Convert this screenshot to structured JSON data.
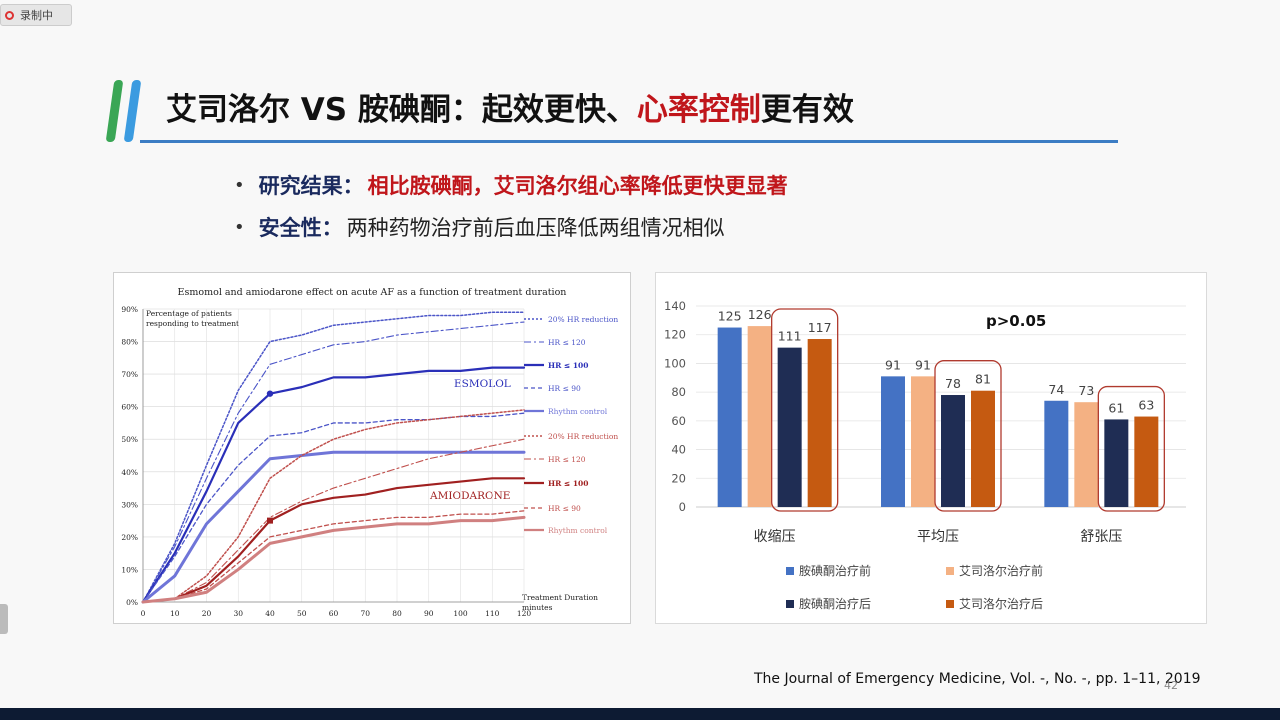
{
  "recording": {
    "label": "录制中"
  },
  "title": {
    "part1": "艾司洛尔 VS 胺碘酮：起效更快、",
    "part2": "心率控制",
    "part3": "更有效"
  },
  "bullets": [
    {
      "label": "研究结果",
      "sep": "：",
      "text": "相比胺碘酮，艾司洛尔组心率降低更快更显著"
    },
    {
      "label": "安全性",
      "sep": "：",
      "text": "两种药物治疗前后血压降低两组情况相似"
    }
  ],
  "citation": "The Journal of Emergency Medicine, Vol. -, No. -, pp. 1–11, 2019",
  "page_number": "42",
  "chart_data": [
    {
      "type": "line",
      "title": "Esmomol and amiodarone effect on acute AF as a function of treatment duration",
      "ylabel": "Percentage of patients responding to treatment",
      "xlabel": "Treatment Duration minutes",
      "x": [
        0,
        10,
        20,
        30,
        40,
        50,
        60,
        70,
        80,
        90,
        100,
        110,
        120
      ],
      "xlim": [
        0,
        120
      ],
      "ylim": [
        0,
        90
      ],
      "y_ticks": [
        "0%",
        "10%",
        "20%",
        "30%",
        "40%",
        "50%",
        "60%",
        "70%",
        "80%",
        "90%"
      ],
      "annotations": [
        "ESMOLOL",
        "AMIODARONE"
      ],
      "series": [
        {
          "name": "20% HR reduction",
          "group": "esmolol",
          "color": "#4b55c8",
          "style": "dotted",
          "values": [
            0,
            18,
            42,
            65,
            80,
            82,
            85,
            86,
            87,
            88,
            88,
            89,
            89
          ]
        },
        {
          "name": "HR ≤ 120",
          "group": "esmolol",
          "color": "#4b55c8",
          "style": "dashdot",
          "values": [
            0,
            17,
            38,
            58,
            73,
            76,
            79,
            80,
            82,
            83,
            84,
            85,
            86
          ]
        },
        {
          "name": "HR ≤ 100",
          "group": "esmolol",
          "color": "#2a2fb8",
          "style": "solid-bold",
          "values": [
            0,
            15,
            34,
            55,
            64,
            66,
            69,
            69,
            70,
            71,
            71,
            72,
            72
          ]
        },
        {
          "name": "HR ≤ 90",
          "group": "esmolol",
          "color": "#4b55c8",
          "style": "dashed",
          "values": [
            0,
            14,
            30,
            42,
            51,
            52,
            55,
            55,
            56,
            56,
            57,
            57,
            58
          ]
        },
        {
          "name": "Rhythm control",
          "group": "esmolol",
          "color": "#6f75d8",
          "style": "solid-thick",
          "values": [
            0,
            8,
            24,
            34,
            44,
            45,
            46,
            46,
            46,
            46,
            46,
            46,
            46
          ]
        },
        {
          "name": "20% HR reduction",
          "group": "amiodarone",
          "color": "#c0504d",
          "style": "dotted",
          "values": [
            0,
            1,
            8,
            20,
            38,
            45,
            50,
            53,
            55,
            56,
            57,
            58,
            59
          ]
        },
        {
          "name": "HR ≤ 120",
          "group": "amiodarone",
          "color": "#c0504d",
          "style": "dashdot",
          "values": [
            0,
            1,
            6,
            16,
            26,
            31,
            35,
            38,
            41,
            44,
            46,
            48,
            50
          ]
        },
        {
          "name": "HR ≤ 100",
          "group": "amiodarone",
          "color": "#a02020",
          "style": "solid-bold",
          "values": [
            0,
            1,
            5,
            14,
            25,
            30,
            32,
            33,
            35,
            36,
            37,
            38,
            38
          ]
        },
        {
          "name": "HR ≤ 90",
          "group": "amiodarone",
          "color": "#c0504d",
          "style": "dashed",
          "values": [
            0,
            1,
            4,
            12,
            20,
            22,
            24,
            25,
            26,
            26,
            27,
            27,
            28
          ]
        },
        {
          "name": "Rhythm control",
          "group": "amiodarone",
          "color": "#d08080",
          "style": "solid-thick",
          "values": [
            0,
            1,
            3,
            10,
            18,
            20,
            22,
            23,
            24,
            24,
            25,
            25,
            26
          ]
        }
      ]
    },
    {
      "type": "bar",
      "categories": [
        "收缩压",
        "平均压",
        "舒张压"
      ],
      "ylim": [
        0,
        140
      ],
      "y_ticks": [
        0,
        20,
        40,
        60,
        80,
        100,
        120,
        140
      ],
      "annotation": "p>0.05",
      "series": [
        {
          "name": "胺碘酮治疗前",
          "color": "#4472c4",
          "values": [
            125,
            91,
            74
          ]
        },
        {
          "name": "艾司洛尔治疗前",
          "color": "#f4b183",
          "values": [
            126,
            91,
            73
          ]
        },
        {
          "name": "胺碘酮治疗后",
          "color": "#1f2d54",
          "values": [
            111,
            78,
            61
          ]
        },
        {
          "name": "艾司洛尔治疗后",
          "color": "#c55a11",
          "values": [
            117,
            81,
            63
          ]
        }
      ]
    }
  ]
}
